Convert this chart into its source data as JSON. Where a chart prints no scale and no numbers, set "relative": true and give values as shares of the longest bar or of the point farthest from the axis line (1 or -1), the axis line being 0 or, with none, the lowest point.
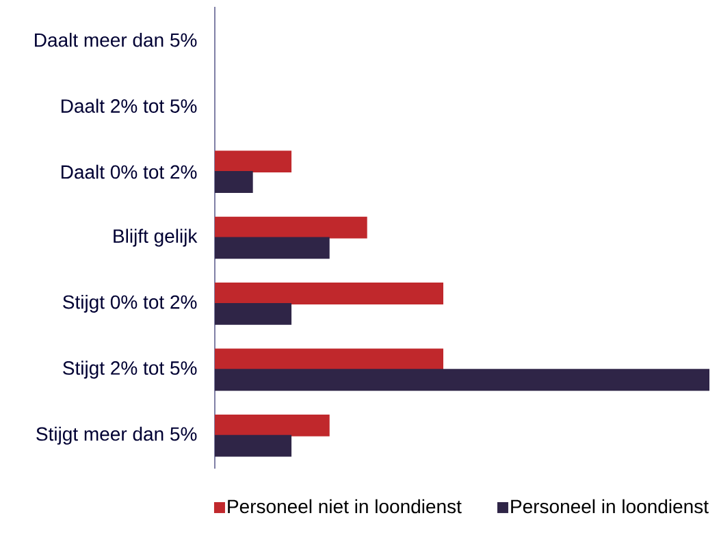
{
  "chart_data": {
    "type": "bar",
    "orientation": "horizontal",
    "relative": true,
    "legend": "bottom",
    "categories": [
      "Daalt meer dan 5%",
      "Daalt 2% tot 5%",
      "Daalt 0% tot 2%",
      "Blijft gelijk",
      "Stijgt 0% tot 2%",
      "Stijgt 2% tot 5%",
      "Stijgt meer dan 5%"
    ],
    "series": [
      {
        "name": "Personeel niet in loondienst",
        "color": "#c0282c",
        "values": [
          0,
          0,
          0.155,
          0.308,
          0.462,
          0.462,
          0.232
        ]
      },
      {
        "name": "Personeel in loondienst",
        "color": "#2f2547",
        "values": [
          0,
          0,
          0.077,
          0.232,
          0.155,
          1.0,
          0.155
        ]
      }
    ]
  }
}
